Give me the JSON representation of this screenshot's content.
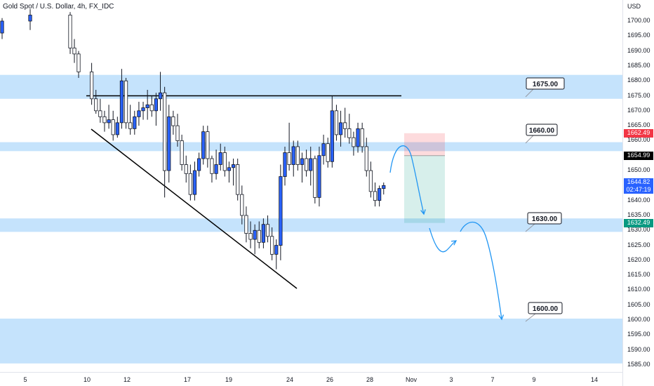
{
  "symbol_title": "Gold Spot / U.S. Dollar, 4h, FX_IDC",
  "price_axis": {
    "currency": "USD",
    "ticks": [
      1700,
      1695,
      1690,
      1685,
      1680,
      1675,
      1670,
      1665,
      1660,
      1655,
      1650,
      1645,
      1640,
      1635,
      1630,
      1625,
      1620,
      1615,
      1610,
      1605,
      1600,
      1595,
      1590,
      1585
    ],
    "tick_labels": [
      "1700.00",
      "1695.00",
      "1690.00",
      "1685.00",
      "1680.00",
      "1675.00",
      "1670.00",
      "1665.00",
      "1660.00",
      "1655.00",
      "1650.00",
      "1645.00",
      "1640.00",
      "1635.00",
      "1630.00",
      "1625.00",
      "1620.00",
      "1615.00",
      "1610.00",
      "1605.00",
      "1600.00",
      "1595.00",
      "1590.00",
      "1585.00"
    ]
  },
  "time_axis": {
    "labels": [
      {
        "text": "5",
        "bar": -14
      },
      {
        "text": "10",
        "bar": 0
      },
      {
        "text": "12",
        "bar": 10
      },
      {
        "text": "17",
        "bar": 27
      },
      {
        "text": "19",
        "bar": 37
      },
      {
        "text": "24",
        "bar": 54
      },
      {
        "text": "26",
        "bar": 64
      },
      {
        "text": "28",
        "bar": 74
      },
      {
        "text": "Nov",
        "bar": 84
      },
      {
        "text": "3",
        "bar": 94
      },
      {
        "text": "7",
        "bar": 104
      },
      {
        "text": "9",
        "bar": 114
      },
      {
        "text": "14",
        "bar": 131
      }
    ]
  },
  "price_tags": {
    "stop": {
      "label": "1662.49",
      "value": 1662.49,
      "color": "#f23645"
    },
    "entry": {
      "label": "1654.99",
      "value": 1654.99,
      "color": "#000000"
    },
    "current": {
      "label": "1644.82",
      "countdown": "02:47:19",
      "value": 1644.82,
      "color": "#2962ff"
    },
    "target": {
      "label": "1632.49",
      "value": 1632.49,
      "color": "#089981"
    }
  },
  "zones": [
    {
      "from": 1674.0,
      "to": 1682.0,
      "color": "#bbdefb"
    },
    {
      "from": 1656.5,
      "to": 1659.5,
      "color": "#bbdefb"
    },
    {
      "from": 1629.5,
      "to": 1634.0,
      "color": "#bbdefb"
    },
    {
      "from": 1585.5,
      "to": 1600.5,
      "color": "#bbdefb"
    }
  ],
  "callouts": [
    {
      "label": "1675.00",
      "value": 1675.0
    },
    {
      "label": "1660.00",
      "value": 1660.0
    },
    {
      "label": "1630.00",
      "value": 1630.0
    },
    {
      "label": "1600.00",
      "value": 1600.0
    }
  ],
  "colors": {
    "up": "#2962ff",
    "down": "#ffffff",
    "wick": "#131722",
    "arrow": "#2196f3",
    "trendline": "#000000"
  },
  "chart_data": {
    "type": "candlestick",
    "x_unit": "4h bar index",
    "ylim": [
      1583,
      1704
    ],
    "candles": [
      {
        "o": 1696,
        "h": 1701,
        "l": 1694,
        "c": 1700
      },
      {
        "o": 1700,
        "h": 1704,
        "l": 1697,
        "c": 1702
      },
      {
        "o": 1702,
        "h": 1703,
        "l": 1689,
        "c": 1691
      },
      {
        "o": 1691,
        "h": 1694,
        "l": 1686,
        "c": 1689
      },
      {
        "o": 1689,
        "h": 1690,
        "l": 1681,
        "c": 1683
      },
      {
        "o": 1683,
        "h": 1686,
        "l": 1672,
        "c": 1674
      },
      {
        "o": 1674,
        "h": 1677,
        "l": 1669,
        "c": 1670
      },
      {
        "o": 1670,
        "h": 1674,
        "l": 1666,
        "c": 1668
      },
      {
        "o": 1668,
        "h": 1670,
        "l": 1663,
        "c": 1666
      },
      {
        "o": 1666,
        "h": 1672,
        "l": 1664,
        "c": 1667
      },
      {
        "o": 1667,
        "h": 1670,
        "l": 1660,
        "c": 1662
      },
      {
        "o": 1662,
        "h": 1668,
        "l": 1661,
        "c": 1666
      },
      {
        "o": 1666,
        "h": 1684,
        "l": 1664,
        "c": 1680
      },
      {
        "o": 1680,
        "h": 1681,
        "l": 1664,
        "c": 1666
      },
      {
        "o": 1666,
        "h": 1672,
        "l": 1662,
        "c": 1664
      },
      {
        "o": 1664,
        "h": 1670,
        "l": 1662,
        "c": 1668
      },
      {
        "o": 1668,
        "h": 1673,
        "l": 1665,
        "c": 1670
      },
      {
        "o": 1670,
        "h": 1673,
        "l": 1667,
        "c": 1671
      },
      {
        "o": 1671,
        "h": 1677,
        "l": 1667,
        "c": 1672
      },
      {
        "o": 1672,
        "h": 1675,
        "l": 1668,
        "c": 1670
      },
      {
        "o": 1670,
        "h": 1676,
        "l": 1665,
        "c": 1674
      },
      {
        "o": 1674,
        "h": 1683,
        "l": 1670,
        "c": 1676
      },
      {
        "o": 1676,
        "h": 1678,
        "l": 1641,
        "c": 1650
      },
      {
        "o": 1650,
        "h": 1672,
        "l": 1646,
        "c": 1668
      },
      {
        "o": 1668,
        "h": 1670,
        "l": 1662,
        "c": 1665
      },
      {
        "o": 1665,
        "h": 1669,
        "l": 1658,
        "c": 1660
      },
      {
        "o": 1660,
        "h": 1662,
        "l": 1650,
        "c": 1652
      },
      {
        "o": 1652,
        "h": 1655,
        "l": 1646,
        "c": 1649
      },
      {
        "o": 1649,
        "h": 1652,
        "l": 1640,
        "c": 1642
      },
      {
        "o": 1642,
        "h": 1653,
        "l": 1640,
        "c": 1650
      },
      {
        "o": 1650,
        "h": 1656,
        "l": 1648,
        "c": 1654
      },
      {
        "o": 1654,
        "h": 1665,
        "l": 1652,
        "c": 1663
      },
      {
        "o": 1663,
        "h": 1665,
        "l": 1651,
        "c": 1654
      },
      {
        "o": 1654,
        "h": 1655,
        "l": 1646,
        "c": 1649
      },
      {
        "o": 1649,
        "h": 1657,
        "l": 1647,
        "c": 1652
      },
      {
        "o": 1652,
        "h": 1659,
        "l": 1650,
        "c": 1656
      },
      {
        "o": 1656,
        "h": 1658,
        "l": 1648,
        "c": 1650
      },
      {
        "o": 1650,
        "h": 1653,
        "l": 1646,
        "c": 1651
      },
      {
        "o": 1651,
        "h": 1654,
        "l": 1645,
        "c": 1652
      },
      {
        "o": 1652,
        "h": 1654,
        "l": 1640,
        "c": 1642
      },
      {
        "o": 1642,
        "h": 1645,
        "l": 1632,
        "c": 1635
      },
      {
        "o": 1635,
        "h": 1638,
        "l": 1626,
        "c": 1629
      },
      {
        "o": 1629,
        "h": 1633,
        "l": 1624,
        "c": 1627
      },
      {
        "o": 1627,
        "h": 1632,
        "l": 1622,
        "c": 1630
      },
      {
        "o": 1630,
        "h": 1633,
        "l": 1624,
        "c": 1626
      },
      {
        "o": 1626,
        "h": 1634,
        "l": 1624,
        "c": 1632
      },
      {
        "o": 1632,
        "h": 1635,
        "l": 1626,
        "c": 1628
      },
      {
        "o": 1628,
        "h": 1631,
        "l": 1620,
        "c": 1622
      },
      {
        "o": 1622,
        "h": 1627,
        "l": 1617,
        "c": 1625
      },
      {
        "o": 1625,
        "h": 1652,
        "l": 1620,
        "c": 1648
      },
      {
        "o": 1648,
        "h": 1658,
        "l": 1645,
        "c": 1656
      },
      {
        "o": 1656,
        "h": 1666,
        "l": 1650,
        "c": 1652
      },
      {
        "o": 1652,
        "h": 1660,
        "l": 1648,
        "c": 1658
      },
      {
        "o": 1658,
        "h": 1660,
        "l": 1650,
        "c": 1652
      },
      {
        "o": 1652,
        "h": 1656,
        "l": 1646,
        "c": 1654
      },
      {
        "o": 1654,
        "h": 1657,
        "l": 1648,
        "c": 1650
      },
      {
        "o": 1650,
        "h": 1658,
        "l": 1645,
        "c": 1654
      },
      {
        "o": 1654,
        "h": 1655,
        "l": 1639,
        "c": 1641
      },
      {
        "o": 1641,
        "h": 1658,
        "l": 1638,
        "c": 1655
      },
      {
        "o": 1655,
        "h": 1662,
        "l": 1652,
        "c": 1659
      },
      {
        "o": 1659,
        "h": 1661,
        "l": 1651,
        "c": 1653
      },
      {
        "o": 1653,
        "h": 1675,
        "l": 1651,
        "c": 1670
      },
      {
        "o": 1670,
        "h": 1672,
        "l": 1660,
        "c": 1662
      },
      {
        "o": 1662,
        "h": 1670,
        "l": 1658,
        "c": 1666
      },
      {
        "o": 1666,
        "h": 1671,
        "l": 1661,
        "c": 1664
      },
      {
        "o": 1664,
        "h": 1669,
        "l": 1659,
        "c": 1661
      },
      {
        "o": 1661,
        "h": 1663,
        "l": 1655,
        "c": 1658
      },
      {
        "o": 1658,
        "h": 1666,
        "l": 1656,
        "c": 1664
      },
      {
        "o": 1664,
        "h": 1666,
        "l": 1656,
        "c": 1658
      },
      {
        "o": 1658,
        "h": 1661,
        "l": 1648,
        "c": 1650
      },
      {
        "o": 1650,
        "h": 1653,
        "l": 1641,
        "c": 1643
      },
      {
        "o": 1643,
        "h": 1646,
        "l": 1638,
        "c": 1640
      },
      {
        "o": 1640,
        "h": 1645,
        "l": 1638,
        "c": 1644
      },
      {
        "o": 1644,
        "h": 1646,
        "l": 1642,
        "c": 1645
      }
    ],
    "annotations": {
      "resistance_line": 1675.0,
      "descending_trendline": [
        {
          "bar": 0,
          "price": 1664
        },
        {
          "bar": 69,
          "price": 1611
        }
      ],
      "short_position": {
        "start_bar": 107,
        "end_bar": 125,
        "entry": 1654.99,
        "stop": 1662.49,
        "target": 1632.49
      }
    }
  }
}
